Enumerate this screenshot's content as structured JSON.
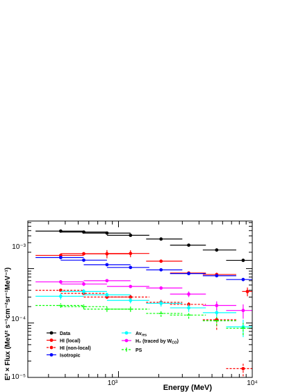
{
  "chart_data": {
    "type": "scatter",
    "title": "",
    "xlabel": "Energy (MeV)",
    "ylabel": "E² × Flux (MeV² s⁻¹cm⁻²sr⁻¹MeV⁻¹)",
    "xscale": "log",
    "yscale": "log",
    "xlim": [
      210,
      10000
    ],
    "ylim": [
      1e-05,
      0.0075
    ],
    "x_tick_labels": [
      "10³",
      "10⁴"
    ],
    "y_tick_labels": [
      "10⁻⁵",
      "10⁻⁴",
      "10⁻³"
    ],
    "grid": false,
    "legend_position": "lower-left",
    "series": [
      {
        "name": "Data",
        "color": "#000000",
        "marker": "circle",
        "style": "solid",
        "x": [
          370,
          550,
          820,
          1230,
          2080,
          3350,
          5420,
          8550
        ],
        "xerr": [
          [
            130,
            180
          ],
          [
            180,
            270
          ],
          [
            270,
            410
          ],
          [
            410,
            470
          ],
          [
            470,
            920
          ],
          [
            920,
            1150
          ],
          [
            1150,
            2170
          ],
          [
            2170,
            1450
          ]
        ],
        "y": [
          0.0049,
          0.0047,
          0.0045,
          0.0041,
          0.0035,
          0.0027,
          0.0022,
          0.00142
        ],
        "yerr": [
          0.00012,
          0.00012,
          0.00012,
          0.0001,
          0.0001,
          0.0001,
          0.0001,
          6e-05
        ]
      },
      {
        "name": "HI (local)",
        "color": "#ff0000",
        "marker": "circle",
        "style": "solid",
        "x": [
          370,
          550,
          820,
          1230,
          2080,
          3350,
          5420,
          9200
        ],
        "xerr": [
          [
            130,
            180
          ],
          [
            180,
            270
          ],
          [
            270,
            410
          ],
          [
            410,
            470
          ],
          [
            470,
            920
          ],
          [
            920,
            1150
          ],
          [
            1150,
            2170
          ],
          [
            800,
            800
          ]
        ],
        "y": [
          0.00175,
          0.00188,
          0.00187,
          0.0019,
          0.00137,
          0.00083,
          0.00078,
          0.00038
        ],
        "yerr": [
          8e-05,
          0.0001,
          0.00032,
          0.00028,
          6e-05,
          4e-05,
          6e-05,
          7e-05
        ]
      },
      {
        "name": "HI (non-local)",
        "color": "#ff0000",
        "marker": "circle",
        "style": "dashed",
        "x": [
          370,
          550,
          820,
          1230,
          2080,
          3350,
          5420,
          8550
        ],
        "xerr": [
          [
            130,
            180
          ],
          [
            180,
            270
          ],
          [
            270,
            410
          ],
          [
            410,
            470
          ],
          [
            470,
            920
          ],
          [
            920,
            1150
          ],
          [
            1150,
            2170
          ],
          [
            2170,
            1450
          ]
        ],
        "y": [
          0.0004,
          0.00035,
          0.0003,
          0.0003,
          0.00024,
          0.00022,
          0.000115,
          1.45e-05
        ],
        "yerr": [
          2e-05,
          2e-05,
          2e-05,
          3e-05,
          3e-05,
          3e-05,
          4e-05,
          4e-06
        ]
      },
      {
        "name": "Isotropic",
        "color": "#0000ff",
        "marker": "circle",
        "style": "solid",
        "x": [
          370,
          550,
          820,
          1230,
          2080,
          3350,
          5420,
          8550
        ],
        "xerr": [
          [
            130,
            180
          ],
          [
            180,
            270
          ],
          [
            270,
            410
          ],
          [
            410,
            470
          ],
          [
            470,
            920
          ],
          [
            920,
            1150
          ],
          [
            1150,
            2170
          ],
          [
            2170,
            1450
          ]
        ],
        "y": [
          0.0016,
          0.00143,
          0.00118,
          0.00105,
          0.00095,
          0.00081,
          0.00074,
          0.00063
        ],
        "yerr": [
          4e-05,
          4e-05,
          3e-05,
          3e-05,
          3e-05,
          3e-05,
          3e-05,
          3e-05
        ]
      },
      {
        "name": "Av_res",
        "color": "#00ffff",
        "marker": "circle",
        "style": "solid",
        "x": [
          370,
          550,
          820,
          1230,
          2080,
          3350,
          5420,
          8550
        ],
        "xerr": [
          [
            130,
            180
          ],
          [
            180,
            270
          ],
          [
            270,
            410
          ],
          [
            410,
            470
          ],
          [
            470,
            920
          ],
          [
            920,
            1150
          ],
          [
            1150,
            2170
          ],
          [
            2170,
            1450
          ]
        ],
        "y": [
          0.00031,
          0.00038,
          0.00033,
          0.00026,
          0.00023,
          0.00019,
          0.000155,
          8.5e-05
        ],
        "yerr": [
          4e-05,
          4e-05,
          3e-05,
          3e-05,
          3e-05,
          3e-05,
          3e-05,
          3e-05
        ]
      },
      {
        "name": "H₂ (traced by W_CO)",
        "color": "#ff00ff",
        "marker": "circle",
        "style": "solid",
        "x": [
          370,
          550,
          820,
          1230,
          2080,
          3350,
          5420,
          8550
        ],
        "xerr": [
          [
            130,
            180
          ],
          [
            180,
            270
          ],
          [
            270,
            410
          ],
          [
            410,
            470
          ],
          [
            470,
            920
          ],
          [
            920,
            1150
          ],
          [
            1150,
            2170
          ],
          [
            2170,
            1450
          ]
        ],
        "y": [
          0.00057,
          0.00052,
          0.0006,
          0.00047,
          0.00044,
          0.00034,
          0.00021,
          0.00017
        ],
        "yerr": [
          4e-05,
          4e-05,
          4e-05,
          3e-05,
          3e-05,
          4e-05,
          4e-05,
          5e-05
        ]
      },
      {
        "name": "PS",
        "color": "#00ff00",
        "marker": "cross",
        "style": "dashed",
        "x": [
          370,
          550,
          820,
          1230,
          2080,
          3350,
          5420,
          8550
        ],
        "xerr": [
          [
            130,
            180
          ],
          [
            180,
            270
          ],
          [
            270,
            410
          ],
          [
            410,
            470
          ],
          [
            470,
            920
          ],
          [
            920,
            1150
          ],
          [
            1150,
            2170
          ],
          [
            2170,
            1450
          ]
        ],
        "y": [
          0.00021,
          0.0002,
          0.00018,
          0.00018,
          0.00015,
          0.00014,
          0.00011,
          8e-05
        ],
        "yerr": [
          2e-05,
          2e-05,
          2e-05,
          2e-05,
          2e-05,
          2e-05,
          2e-05,
          2e-05
        ]
      }
    ],
    "legend": {
      "col1": [
        "Data",
        "HI (local)",
        "HI (non-local)",
        "Isotropic"
      ],
      "col2": [
        "Av_res",
        "H₂ (traced by W_CO)",
        "PS"
      ]
    }
  }
}
